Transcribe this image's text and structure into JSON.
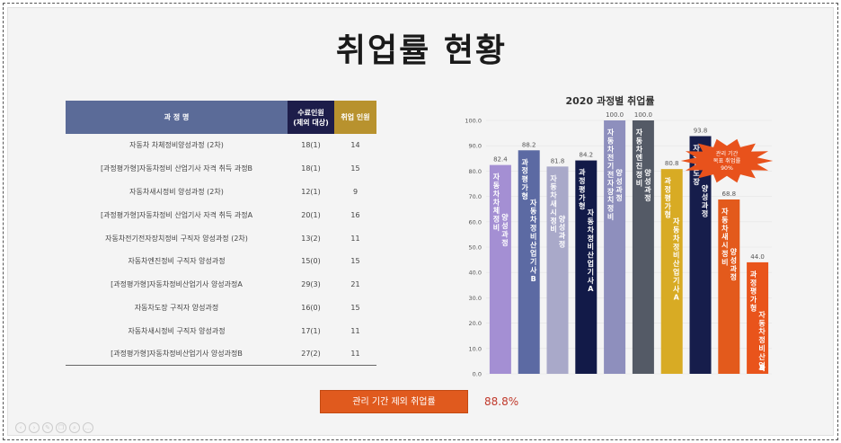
{
  "slide_title": "취업률 현황",
  "table": {
    "headers": {
      "course": "과 정 명",
      "completed_line1": "수료인원",
      "completed_line2": "(제외 대상)",
      "employed": "취업 인원"
    },
    "rows": [
      {
        "course": "자동차 차체정비양성과정 (2차)",
        "completed": "18(1)",
        "employed": "14"
      },
      {
        "course": "[과정평가형]자동차정비 산업기사 자격 취득 과정B",
        "completed": "18(1)",
        "employed": "15"
      },
      {
        "course": "자동차새시정비 양성과정 (2차)",
        "completed": "12(1)",
        "employed": "9"
      },
      {
        "course": "[과정평가형]자동차정비 산업기사 자격 취득 과정A",
        "completed": "20(1)",
        "employed": "16"
      },
      {
        "course": "자동차전기전자장치정비 구직자 양성과정 (2차)",
        "completed": "13(2)",
        "employed": "11"
      },
      {
        "course": "자동차엔진정비 구직자 양성과정",
        "completed": "15(0)",
        "employed": "15"
      },
      {
        "course": "[과정평가형]자동차정비산업기사 양성과정A",
        "completed": "29(3)",
        "employed": "21"
      },
      {
        "course": "자동차도장 구직자 양성과정",
        "completed": "16(0)",
        "employed": "15"
      },
      {
        "course": "자동차새시정비 구직자 양성과정",
        "completed": "17(1)",
        "employed": "11"
      },
      {
        "course": "[과정평가형]자동차정비산업기사 양성과정B",
        "completed": "27(2)",
        "employed": "11"
      }
    ]
  },
  "chart_data": {
    "type": "bar",
    "title": "2020 과정별 취업률",
    "ylim": [
      0,
      100
    ],
    "yticks": [
      "0.0",
      "10.0",
      "20.0",
      "30.0",
      "40.0",
      "50.0",
      "60.0",
      "70.0",
      "80.0",
      "90.0",
      "100.0"
    ],
    "categories": [
      [
        "자동차차체정비",
        "양성과정"
      ],
      [
        "과정평가형",
        "자동차정비산업기사B"
      ],
      [
        "자동차새시정비",
        "양성과정"
      ],
      [
        "과정평가형",
        "자동차정비산업기사A"
      ],
      [
        "자동차전기전자장치정비",
        "양성과정"
      ],
      [
        "자동차엔진정비",
        "양성과정"
      ],
      [
        "과정평가형",
        "자동차정비산업기사A"
      ],
      [
        "자동차도장",
        "양성과정"
      ],
      [
        "자동차새시정비",
        "양성과정"
      ],
      [
        "과정평가형",
        "자동차정비산업기사B"
      ]
    ],
    "values": [
      82.4,
      88.2,
      81.8,
      84.2,
      100.0,
      100.0,
      80.8,
      93.8,
      68.8,
      44.0
    ],
    "value_labels": [
      "82.4",
      "88.2",
      "81.8",
      "84.2",
      "100.0",
      "100.0",
      "80.8",
      "93.8",
      "68.8",
      "44.0"
    ],
    "colors": [
      "#a48fd3",
      "#5c6aa3",
      "#a9a9c9",
      "#121a48",
      "#8e8fbd",
      "#545a66",
      "#d8ab24",
      "#161d4b",
      "#e35a1c",
      "#e9541b"
    ],
    "burst_label": [
      "관리 기간",
      "목표 취업률",
      "90%"
    ],
    "burst_color": "#e8521c"
  },
  "summary": {
    "label": "관리 기간 제외 취업률",
    "value": "88.8%"
  },
  "toolbar_icons": [
    "prev-icon",
    "next-icon",
    "pen-icon",
    "copy-icon",
    "zoom-icon",
    "more-icon"
  ]
}
